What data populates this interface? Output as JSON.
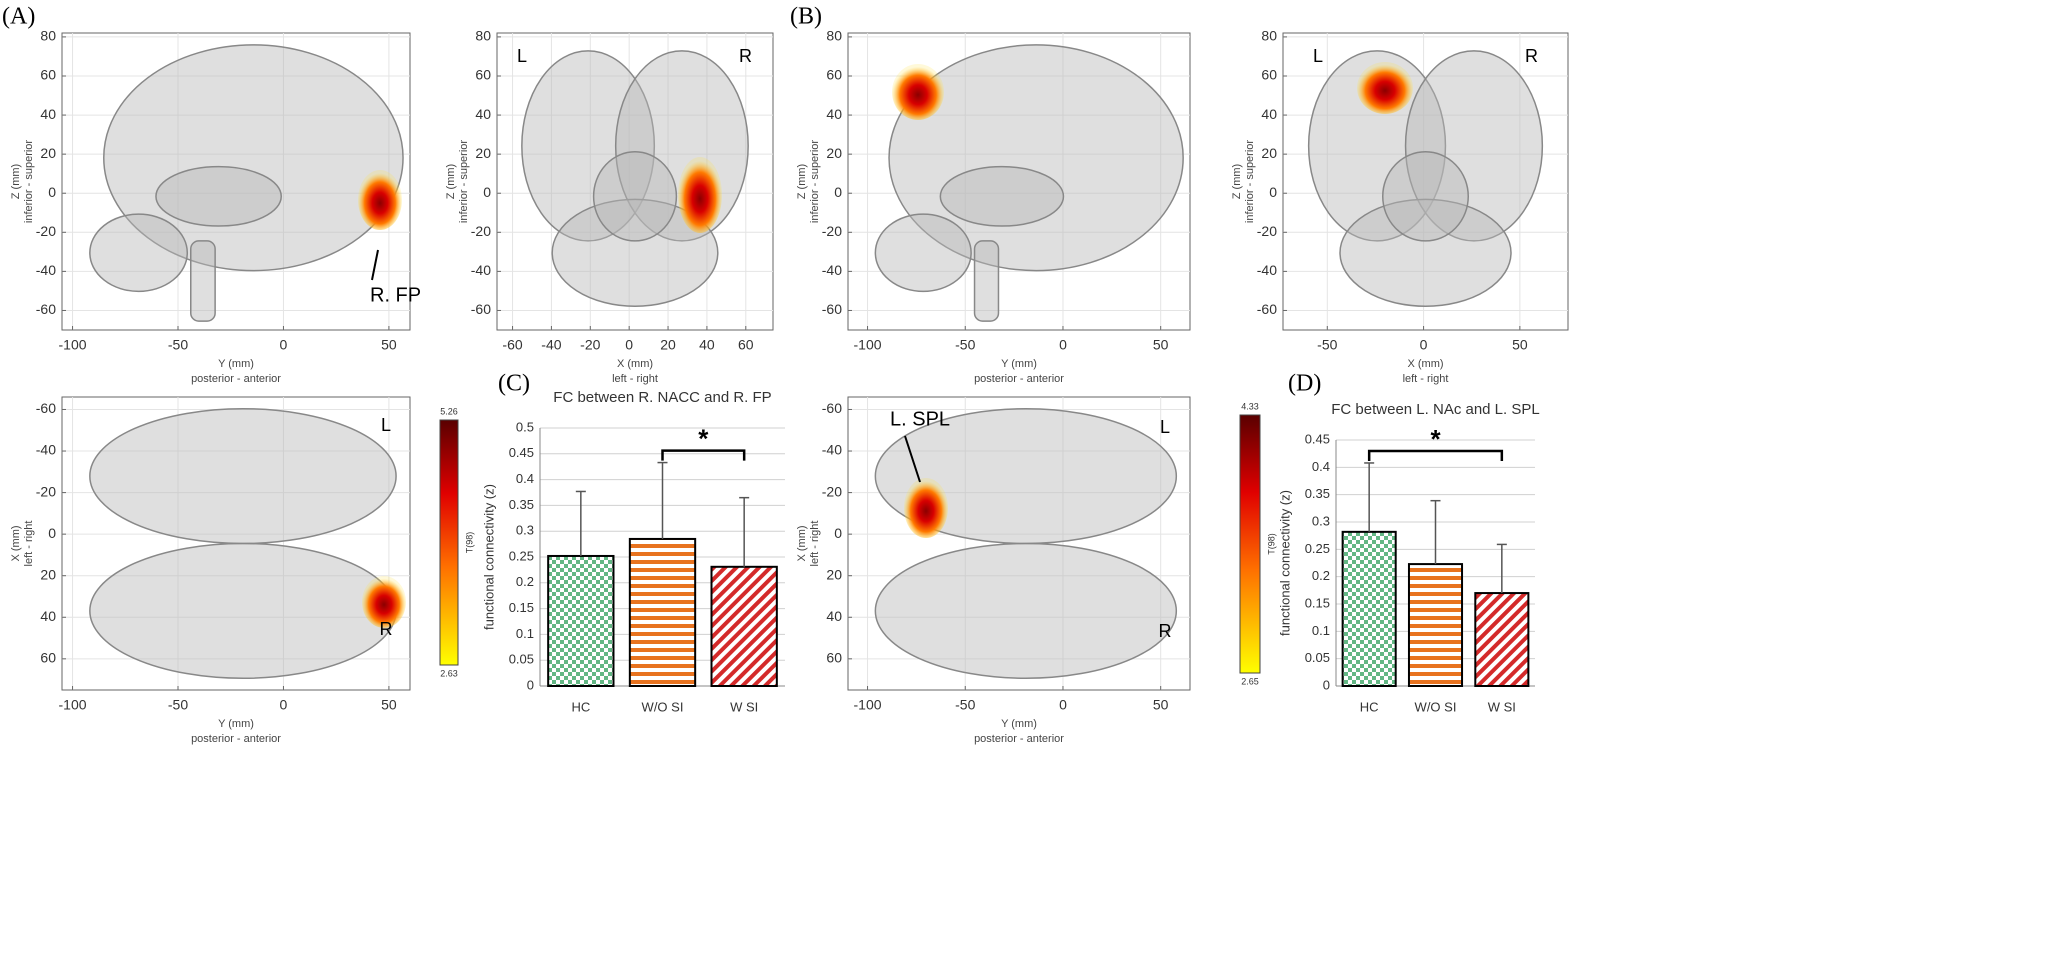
{
  "panel_labels": [
    "(A)",
    "(B)",
    "(C)",
    "(D)"
  ],
  "chart_data": [
    {
      "type": "image",
      "xlabel": [
        "Y (mm)",
        "posterior - anterior"
      ],
      "ylabel": [
        "Z (mm)",
        "inferior - superior"
      ],
      "xlim": [
        -105,
        60
      ],
      "ylim": [
        -70,
        82
      ],
      "xticks": [
        -100,
        -50,
        0,
        50
      ],
      "yticks": [
        -60,
        -40,
        -20,
        0,
        20,
        40,
        60,
        80
      ],
      "grid": true,
      "annotations": [
        "R. FP"
      ]
    },
    {
      "type": "image",
      "xlabel": [
        "X (mm)",
        "left - right"
      ],
      "ylabel": [
        "Z (mm)",
        "inferior - superior"
      ],
      "xlim": [
        -68,
        74
      ],
      "ylim": [
        -70,
        82
      ],
      "xticks": [
        -60,
        -40,
        -20,
        0,
        20,
        40,
        60
      ],
      "yticks": [
        -60,
        -40,
        -20,
        0,
        20,
        40,
        60,
        80
      ],
      "grid": true,
      "annotations": [
        "L",
        "R"
      ]
    },
    {
      "type": "image",
      "xlabel": [
        "Y (mm)",
        "posterior - anterior"
      ],
      "ylabel": [
        "X (mm)",
        "left - right"
      ],
      "xlim": [
        -105,
        60
      ],
      "ylim": [
        75,
        -66
      ],
      "xticks": [
        -100,
        -50,
        0,
        50
      ],
      "yticks": [
        -60,
        -40,
        -20,
        0,
        20,
        40,
        60
      ],
      "grid": true,
      "annotations": [
        "L",
        "R"
      ],
      "colorbar": {
        "label": "T(98)",
        "min": 2.63,
        "max": 5.26
      }
    },
    {
      "type": "image",
      "xlabel": [
        "Y (mm)",
        "posterior - anterior"
      ],
      "ylabel": [
        "Z (mm)",
        "inferior - superior"
      ],
      "xlim": [
        -110,
        65
      ],
      "ylim": [
        -70,
        82
      ],
      "xticks": [
        -100,
        -50,
        0,
        50
      ],
      "yticks": [
        -60,
        -40,
        -20,
        0,
        20,
        40,
        60,
        80
      ],
      "grid": true
    },
    {
      "type": "image",
      "xlabel": [
        "X (mm)",
        "left - right"
      ],
      "ylabel": [
        "Z (mm)",
        "inferior - superior"
      ],
      "xlim": [
        -73,
        75
      ],
      "ylim": [
        -70,
        82
      ],
      "xticks": [
        -50,
        0,
        50
      ],
      "yticks": [
        -60,
        -40,
        -20,
        0,
        20,
        40,
        60,
        80
      ],
      "grid": true,
      "annotations": [
        "L",
        "R"
      ]
    },
    {
      "type": "image",
      "xlabel": [
        "Y (mm)",
        "posterior - anterior"
      ],
      "ylabel": [
        "X (mm)",
        "left - right"
      ],
      "xlim": [
        -110,
        65
      ],
      "ylim": [
        75,
        -66
      ],
      "xticks": [
        -100,
        -50,
        0,
        50
      ],
      "yticks": [
        -60,
        -40,
        -20,
        0,
        20,
        40,
        60
      ],
      "grid": true,
      "annotations": [
        "L. SPL",
        "L",
        "R"
      ],
      "colorbar": {
        "label": "T(98)",
        "min": 2.65,
        "max": 4.33
      }
    },
    {
      "type": "bar",
      "title": "FC between R. NACC and R. FP",
      "ylabel": "functional connectivity (z)",
      "categories": [
        "HC",
        "W/O SI",
        "W SI"
      ],
      "values": [
        0.252,
        0.285,
        0.231
      ],
      "errors": [
        0.125,
        0.148,
        0.134
      ],
      "colors": [
        "#2e9e5b",
        "#e8731f",
        "#d42a2a"
      ],
      "ylim": [
        0,
        0.5
      ],
      "yticks": [
        0,
        0.05,
        0.1,
        0.15,
        0.2,
        0.25,
        0.3,
        0.35,
        0.4,
        0.45,
        0.5
      ],
      "grid": true,
      "significance": {
        "pair": [
          1,
          2
        ],
        "label": "*"
      }
    },
    {
      "type": "bar",
      "title": "FC between  L. NAc and  L. SPL",
      "ylabel": "functional connectivity (z)",
      "categories": [
        "HC",
        "W/O SI",
        "W SI"
      ],
      "values": [
        0.282,
        0.223,
        0.17
      ],
      "errors": [
        0.126,
        0.116,
        0.089
      ],
      "colors": [
        "#2e9e5b",
        "#e8731f",
        "#d42a2a"
      ],
      "ylim": [
        0,
        0.45
      ],
      "yticks": [
        0,
        0.05,
        0.1,
        0.15,
        0.2,
        0.25,
        0.3,
        0.35,
        0.4,
        0.45
      ],
      "grid": true,
      "significance": {
        "pair": [
          0,
          2
        ],
        "label": "*"
      }
    }
  ]
}
